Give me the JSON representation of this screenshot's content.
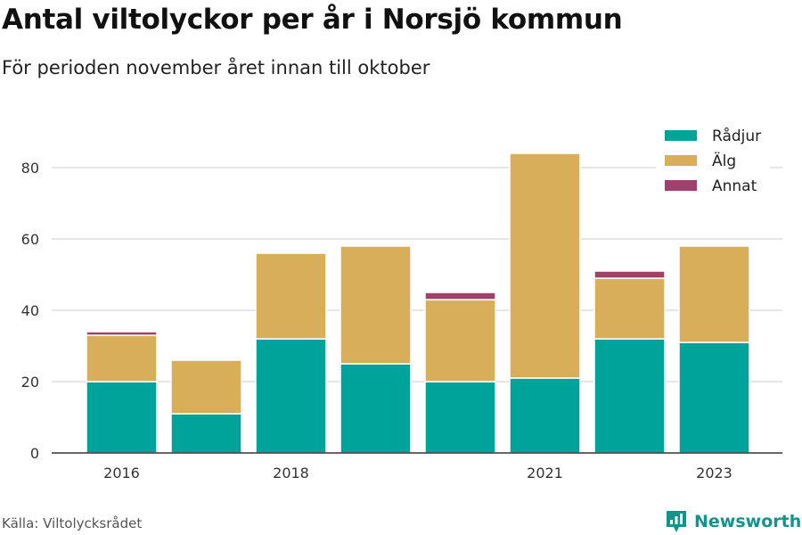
{
  "title": "Antal viltolyckor per år i Norsjö kommun",
  "subtitle": "För perioden november året innan till oktober",
  "source": "Källa: Viltolycksrådet",
  "brand": {
    "name": "Newsworthy",
    "logo_icon": "newsworthy-logo-icon",
    "color": "#12948c"
  },
  "chart_data": {
    "type": "bar",
    "stacked": true,
    "categories": [
      "2016",
      "2017",
      "2018",
      "2019",
      "2020",
      "2021",
      "2022",
      "2023"
    ],
    "x_tick_labels": [
      "2016",
      "",
      "2018",
      "",
      "",
      "2021",
      "",
      "2023"
    ],
    "series": [
      {
        "name": "Rådjur",
        "color": "#00a39a",
        "values": [
          20,
          11,
          32,
          25,
          20,
          21,
          32,
          31
        ]
      },
      {
        "name": "Älg",
        "color": "#d9ae5b",
        "values": [
          13,
          15,
          24,
          33,
          23,
          63,
          17,
          27
        ]
      },
      {
        "name": "Annat",
        "color": "#a0416b",
        "values": [
          1,
          0,
          0,
          0,
          2,
          0,
          2,
          0
        ]
      }
    ],
    "y_ticks": [
      0,
      20,
      40,
      60,
      80
    ],
    "ylim": [
      0,
      90
    ],
    "xlabel": "",
    "ylabel": "",
    "grid": true,
    "legend_position": "top-right"
  }
}
